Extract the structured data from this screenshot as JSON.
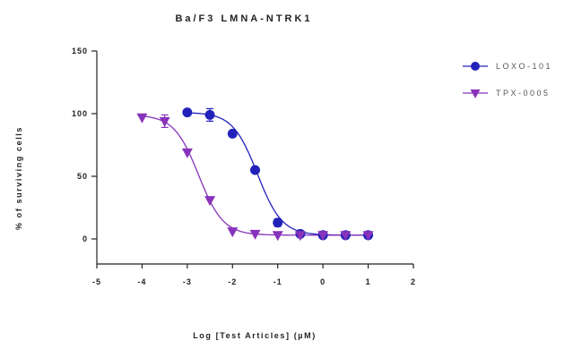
{
  "chart_data": {
    "type": "scatter",
    "title": "Ba/F3 LMNA-NTRK1",
    "xlabel": "Log [Test Articles] (µM)",
    "ylabel": "% of surviving cells",
    "xlim": [
      -5,
      2
    ],
    "ylim": [
      -20,
      150
    ],
    "x_ticks": [
      "-5",
      "-4",
      "-3",
      "-2",
      "-1",
      "0",
      "1",
      "2"
    ],
    "y_ticks": [
      "0",
      "50",
      "100",
      "150"
    ],
    "grid": false,
    "legend_position": "right",
    "series": [
      {
        "name": "LOXO-101",
        "color": "#2222bb",
        "marker": "circle",
        "x": [
          -3,
          -2.5,
          -2,
          -1.5,
          -1,
          -0.5,
          0,
          0.5,
          1
        ],
        "y": [
          101,
          99,
          84,
          55,
          13,
          4,
          3,
          3,
          3
        ],
        "error": [
          0,
          5,
          0,
          0,
          3,
          0,
          0,
          0,
          2
        ],
        "fit": {
          "top": 101,
          "bottom": 3,
          "log_ic50": -1.45,
          "hill": 1.6
        }
      },
      {
        "name": "TPX-0005",
        "color": "#8833bb",
        "marker": "triangle-down",
        "x": [
          -4,
          -3.5,
          -3,
          -2.5,
          -2,
          -1.5,
          -1,
          -0.5,
          0,
          0.5,
          1
        ],
        "y": [
          97,
          94,
          69,
          31,
          6,
          4,
          3,
          3,
          3,
          3,
          3
        ],
        "error": [
          0,
          5,
          0,
          0,
          0,
          0,
          0,
          0,
          0,
          0,
          0
        ],
        "fit": {
          "top": 99,
          "bottom": 3,
          "log_ic50": -2.75,
          "hill": 1.6
        }
      }
    ]
  }
}
